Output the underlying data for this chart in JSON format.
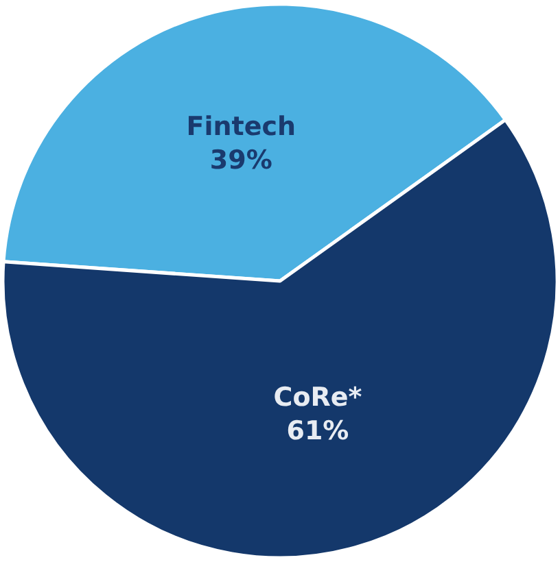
{
  "chart_data": {
    "type": "pie",
    "categories": [
      "Fintech",
      "CoRe*"
    ],
    "values": [
      39,
      61
    ],
    "value_labels": [
      "39%",
      "61%"
    ],
    "colors": [
      "#4bb0e1",
      "#14386b"
    ],
    "legend": false
  }
}
